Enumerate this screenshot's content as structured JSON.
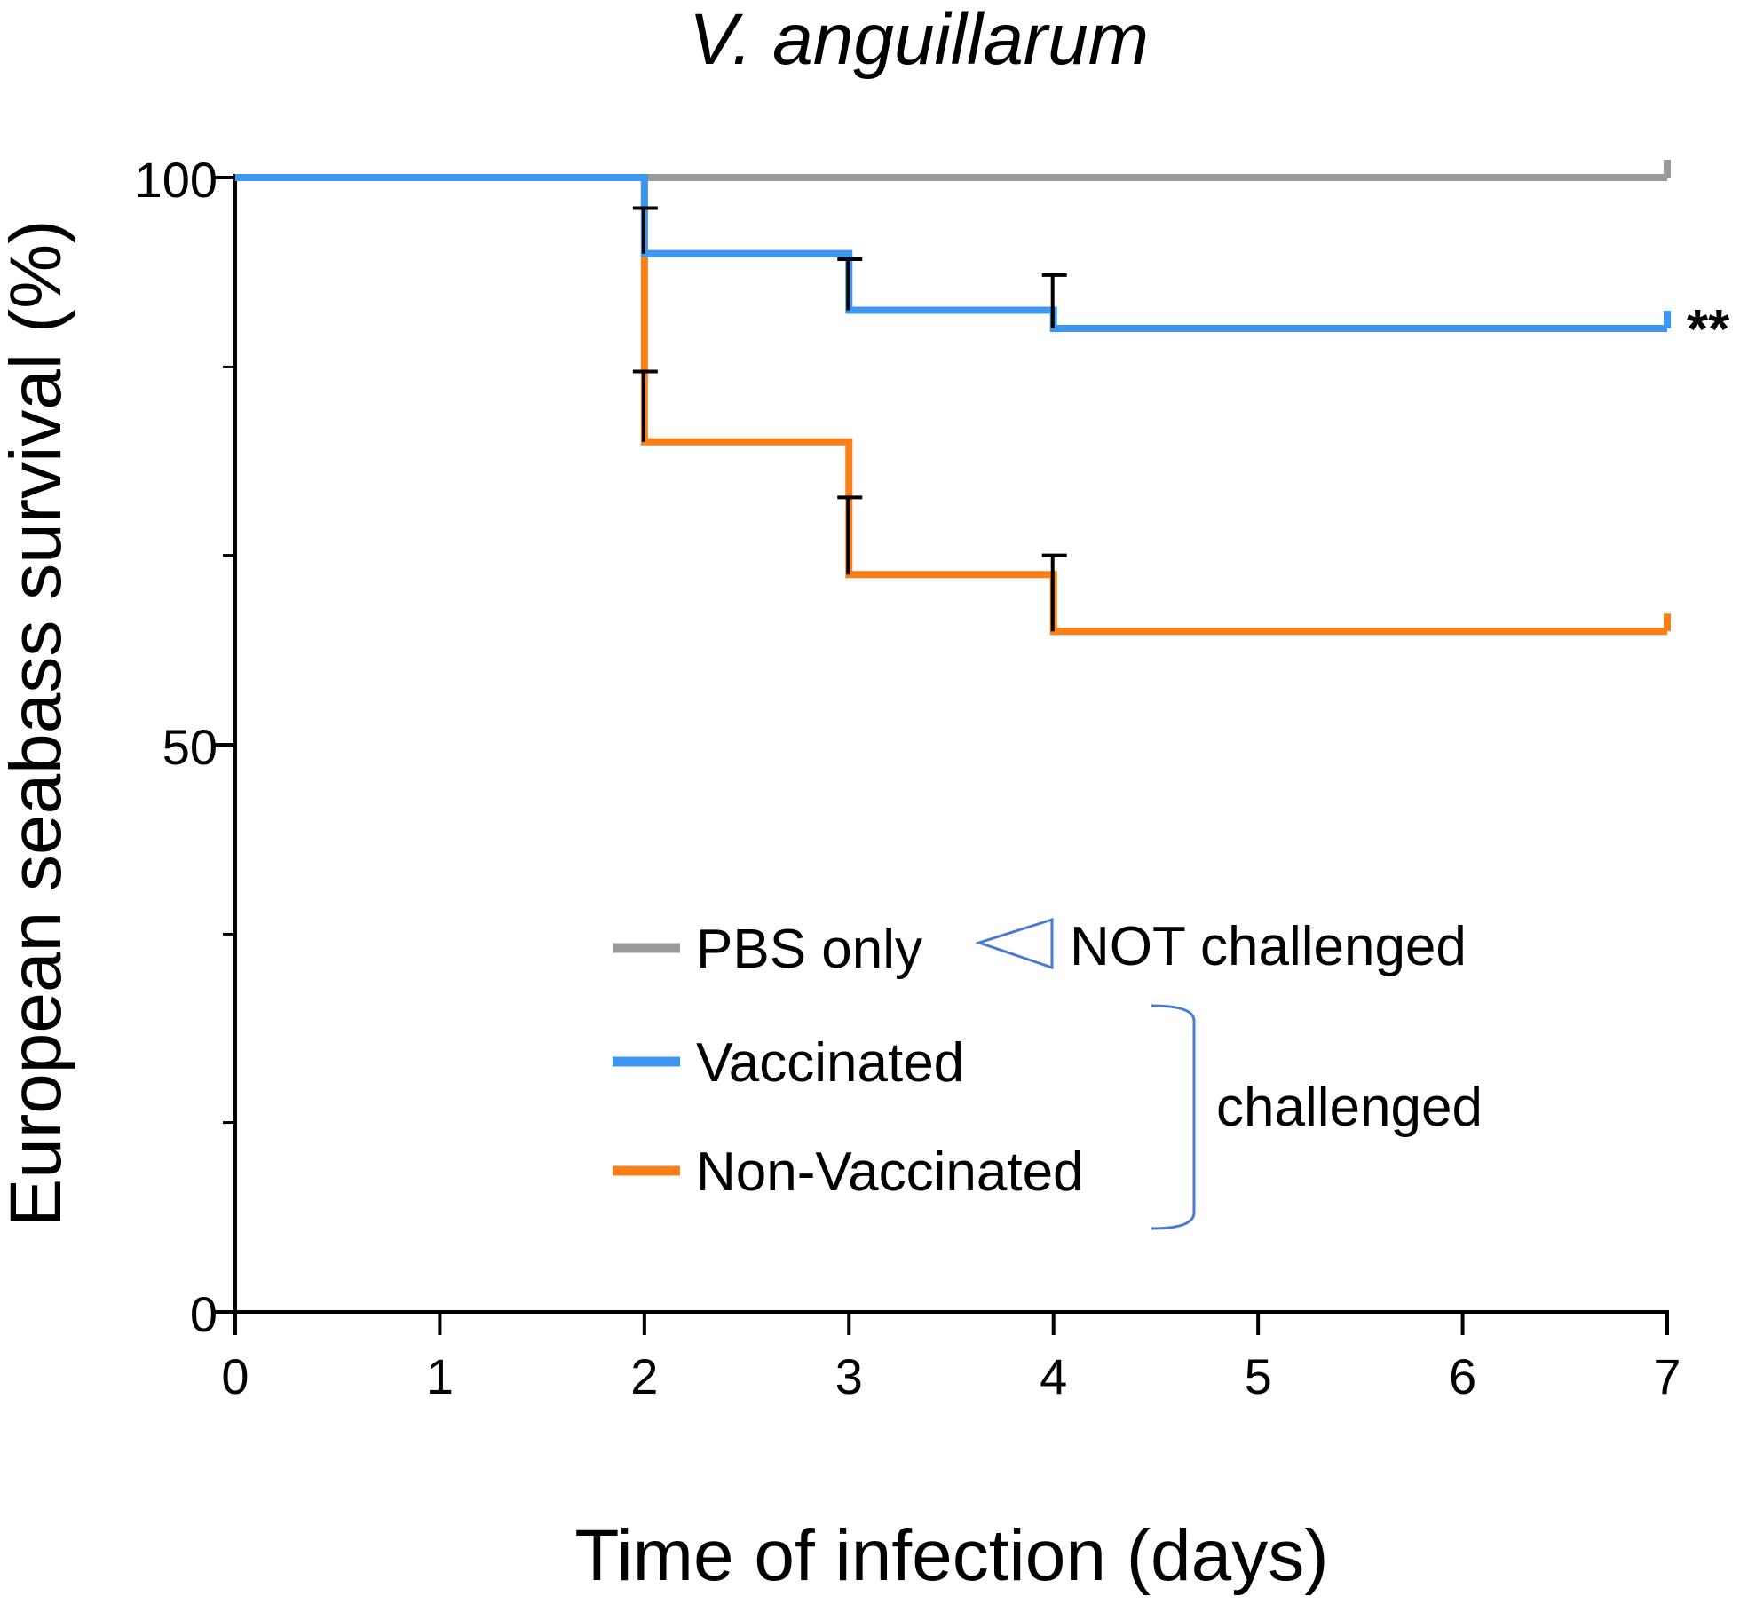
{
  "chart_data": {
    "type": "line",
    "step": true,
    "title": "V. anguillarum",
    "xlabel": "Time of infection (days)",
    "ylabel": "European seabass survival (%)",
    "xlim": [
      0,
      7
    ],
    "ylim": [
      0,
      100
    ],
    "x_ticks": [
      0,
      1,
      2,
      3,
      4,
      5,
      6,
      7
    ],
    "x_tick_labels": [
      "0",
      "1",
      "2",
      "3",
      "4",
      "5",
      "6",
      "7"
    ],
    "y_ticks_labeled": [
      0,
      50,
      100
    ],
    "y_tick_labels": [
      "0",
      "50",
      "100"
    ],
    "y_ticks_minor": [
      16.7,
      33.3,
      66.7,
      83.3
    ],
    "series": [
      {
        "name": "PBS only",
        "color": "#9a9a9c",
        "x": [
          0,
          7
        ],
        "y": [
          100,
          100
        ],
        "error_bars": []
      },
      {
        "name": "Vaccinated",
        "color": "#3d97f0",
        "x": [
          0,
          2,
          3,
          4,
          7
        ],
        "y": [
          100,
          93.3,
          88.3,
          86.7,
          86.7
        ],
        "error_bars": [
          {
            "x": 2,
            "top": 97.3
          },
          {
            "x": 3,
            "top": 92.8
          },
          {
            "x": 4,
            "top": 91.4
          }
        ]
      },
      {
        "name": "Non-Vaccinated",
        "color": "#fb7e16",
        "x": [
          0,
          2,
          3,
          4,
          7
        ],
        "y": [
          100,
          76.7,
          65.0,
          60.0,
          60.0
        ],
        "error_bars": [
          {
            "x": 2,
            "top": 82.9
          },
          {
            "x": 3,
            "top": 71.8
          },
          {
            "x": 4,
            "top": 66.7
          }
        ]
      }
    ],
    "annotations": {
      "significance": "**",
      "significance_series": "Vaccinated",
      "group_not_challenged": "NOT challenged",
      "group_challenged": "challenged",
      "bracket_color": "#4a7bd1"
    }
  }
}
